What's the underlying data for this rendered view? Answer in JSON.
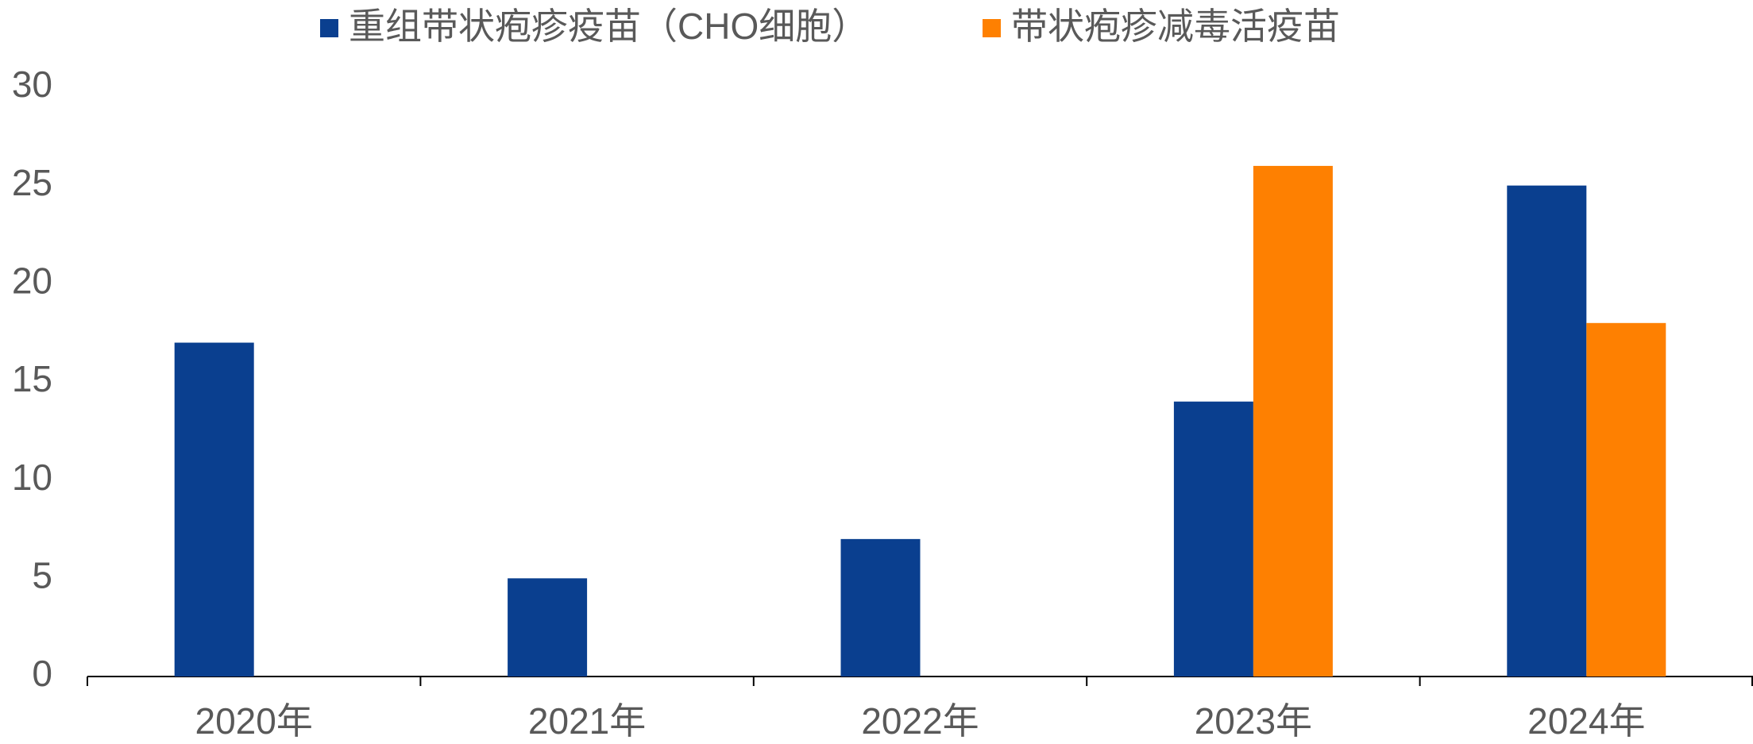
{
  "chart_data": {
    "type": "bar",
    "categories": [
      "2020年",
      "2021年",
      "2022年",
      "2023年",
      "2024年"
    ],
    "series": [
      {
        "name": "重组带状疱疹疫苗（CHO细胞）",
        "color": "#0a3f8f",
        "values": [
          17,
          5,
          7,
          14,
          25
        ]
      },
      {
        "name": "带状疱疹减毒活疫苗",
        "color": "#fe8001",
        "values": [
          null,
          null,
          null,
          26,
          18
        ]
      }
    ],
    "ylim": [
      0,
      30
    ],
    "yticks": [
      0,
      5,
      10,
      15,
      20,
      25,
      30
    ],
    "grid": false,
    "legend": "top"
  }
}
